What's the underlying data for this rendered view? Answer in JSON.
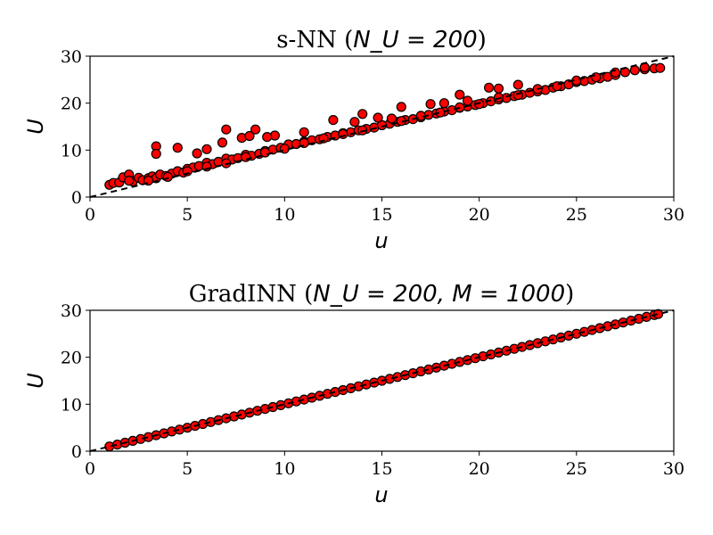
{
  "chart_data": [
    {
      "type": "scatter",
      "title_prefix": "s-NN (",
      "title_math": "N_U = 200",
      "title_suffix": ")",
      "xlabel": "u",
      "ylabel": "U",
      "xlim": [
        0,
        30
      ],
      "ylim": [
        0,
        30
      ],
      "xticks": [
        0,
        5,
        10,
        15,
        20,
        25,
        30
      ],
      "yticks": [
        0,
        10,
        20,
        30
      ],
      "reference_line": {
        "style": "dashed",
        "color": "#000000",
        "x": [
          0,
          30
        ],
        "y": [
          0,
          30
        ]
      },
      "marker_color": "#ff0000",
      "marker_edge": "#000000",
      "series": [
        {
          "x": [
            1.0,
            1.2,
            1.5,
            1.7,
            2.0,
            2.2,
            2.5,
            2.7,
            3.0,
            3.2,
            3.4,
            3.6,
            3.9,
            4.2,
            4.5,
            4.8,
            5.0,
            5.3,
            5.6,
            6.0,
            6.3,
            6.6,
            7.0,
            7.3,
            7.6,
            8.0,
            8.3,
            8.7,
            9.0,
            9.4,
            9.8,
            10.2,
            10.6,
            11.0,
            11.4,
            11.8,
            12.2,
            12.6,
            13.0,
            13.4,
            13.8,
            14.2,
            14.6,
            15.0,
            15.4,
            15.8,
            16.2,
            16.6,
            17.0,
            17.4,
            17.8,
            18.2,
            18.6,
            19.0,
            19.4,
            19.8,
            20.2,
            20.6,
            21.0,
            21.4,
            21.8,
            22.2,
            22.6,
            23.0,
            23.4,
            23.8,
            24.2,
            24.6,
            25.0,
            25.4,
            25.8,
            26.2,
            26.6,
            27.0,
            27.5,
            28.0,
            28.5,
            29.0,
            29.3,
            3.4,
            3.4,
            4.5,
            5.5,
            6.0,
            7.0,
            7.8,
            8.5,
            9.5,
            11.0,
            12.5,
            14.0,
            15.5,
            16.0,
            17.5,
            19.0,
            20.5,
            21.0,
            22.0,
            2.0,
            4.0,
            6.0,
            8.0,
            10.0,
            12.0,
            14.0,
            16.0,
            18.0,
            20.0,
            22.0,
            24.0,
            26.0,
            3.0,
            5.0,
            7.0,
            9.0,
            11.0,
            13.0,
            15.0,
            17.0,
            19.0,
            21.0,
            23.0,
            25.0,
            27.0,
            28.5,
            6.8,
            8.2,
            9.1,
            13.6,
            14.8,
            18.2,
            19.4
          ],
          "y": [
            2.6,
            3.0,
            3.1,
            4.2,
            4.8,
            3.3,
            4.1,
            3.6,
            4.0,
            4.4,
            4.0,
            4.8,
            4.5,
            5.0,
            5.5,
            5.2,
            6.0,
            6.3,
            6.6,
            7.3,
            7.0,
            7.5,
            8.2,
            8.0,
            8.3,
            9.0,
            8.8,
            9.2,
            9.8,
            10.1,
            10.5,
            11.2,
            11.3,
            11.8,
            12.1,
            12.3,
            12.8,
            13.1,
            13.6,
            13.8,
            14.2,
            14.5,
            14.8,
            15.3,
            15.6,
            16.0,
            16.4,
            16.6,
            17.0,
            17.5,
            17.8,
            18.2,
            18.5,
            19.0,
            19.3,
            19.6,
            20.0,
            20.4,
            20.8,
            21.1,
            21.5,
            21.8,
            22.2,
            22.5,
            22.8,
            23.3,
            23.6,
            24.0,
            24.5,
            24.7,
            25.0,
            25.3,
            25.6,
            26.0,
            26.6,
            27.0,
            27.2,
            27.4,
            27.5,
            10.8,
            9.2,
            10.5,
            9.3,
            10.2,
            14.4,
            12.6,
            14.4,
            13.1,
            13.8,
            16.4,
            17.7,
            16.7,
            19.2,
            19.8,
            21.8,
            23.3,
            23.1,
            23.9,
            3.5,
            4.3,
            6.5,
            8.5,
            10.3,
            12.5,
            14.2,
            16.2,
            18.0,
            19.8,
            21.7,
            23.6,
            25.5,
            3.5,
            5.5,
            7.2,
            9.5,
            11.5,
            13.4,
            15.3,
            17.3,
            19.1,
            21.2,
            23.0,
            24.8,
            26.5,
            27.6,
            11.6,
            13.0,
            12.8,
            16.0,
            16.9,
            20.0,
            20.5
          ]
        }
      ]
    },
    {
      "type": "scatter",
      "title_prefix": "GradINN (",
      "title_math": "N_U = 200, M = 1000",
      "title_suffix": ")",
      "xlabel": "u",
      "ylabel": "U",
      "xlim": [
        0,
        30
      ],
      "ylim": [
        0,
        30
      ],
      "xticks": [
        0,
        5,
        10,
        15,
        20,
        25,
        30
      ],
      "yticks": [
        0,
        10,
        20,
        30
      ],
      "reference_line": {
        "style": "dashed",
        "color": "#000000",
        "x": [
          0,
          30
        ],
        "y": [
          0,
          30
        ]
      },
      "marker_color": "#ff0000",
      "marker_edge": "#000000",
      "series": [
        {
          "x": [
            1.0,
            1.4,
            1.8,
            2.2,
            2.6,
            3.0,
            3.4,
            3.8,
            4.2,
            4.6,
            5.0,
            5.4,
            5.8,
            6.2,
            6.6,
            7.0,
            7.4,
            7.8,
            8.2,
            8.6,
            9.0,
            9.4,
            9.8,
            10.2,
            10.6,
            11.0,
            11.4,
            11.8,
            12.2,
            12.6,
            13.0,
            13.4,
            13.8,
            14.2,
            14.6,
            15.0,
            15.4,
            15.8,
            16.2,
            16.6,
            17.0,
            17.4,
            17.8,
            18.2,
            18.6,
            19.0,
            19.4,
            19.8,
            20.2,
            20.6,
            21.0,
            21.4,
            21.8,
            22.2,
            22.6,
            23.0,
            23.4,
            23.8,
            24.2,
            24.6,
            25.0,
            25.4,
            25.8,
            26.2,
            26.6,
            27.0,
            27.4,
            27.8,
            28.2,
            28.6,
            29.0,
            29.2
          ],
          "y": [
            1.0,
            1.4,
            1.8,
            2.2,
            2.6,
            3.0,
            3.4,
            3.8,
            4.2,
            4.6,
            5.0,
            5.4,
            5.8,
            6.2,
            6.6,
            7.0,
            7.4,
            7.8,
            8.2,
            8.6,
            9.0,
            9.4,
            9.8,
            10.2,
            10.6,
            11.0,
            11.4,
            11.8,
            12.2,
            12.6,
            13.0,
            13.4,
            13.8,
            14.2,
            14.6,
            15.0,
            15.4,
            15.8,
            16.2,
            16.6,
            17.0,
            17.4,
            17.8,
            18.2,
            18.6,
            19.0,
            19.4,
            19.8,
            20.2,
            20.6,
            21.0,
            21.4,
            21.8,
            22.2,
            22.6,
            23.0,
            23.4,
            23.8,
            24.2,
            24.6,
            25.0,
            25.4,
            25.8,
            26.2,
            26.6,
            27.0,
            27.4,
            27.8,
            28.2,
            28.6,
            29.0,
            29.2
          ]
        }
      ]
    }
  ]
}
